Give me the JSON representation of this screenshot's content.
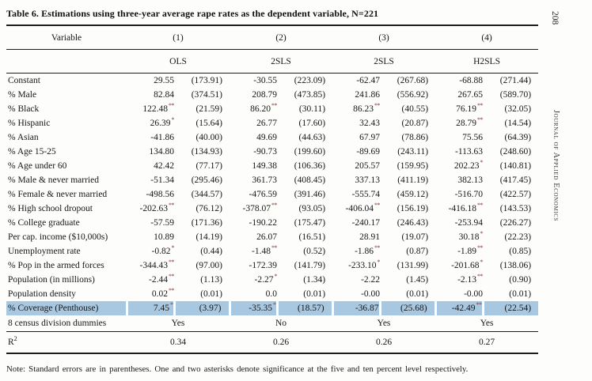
{
  "page": {
    "page_number": "208",
    "journal_title": "Journal of Applied Economics"
  },
  "table": {
    "title": "Table 6. Estimations using three-year average rape rates as the dependent variable, N=221",
    "headers": {
      "variable": "Variable",
      "models": [
        "(1)",
        "(2)",
        "(3)",
        "(4)"
      ],
      "methods": [
        "OLS",
        "2SLS",
        "2SLS",
        "H2SLS"
      ]
    },
    "rows": [
      {
        "label": "Constant",
        "cells": [
          {
            "t": "29.55"
          },
          {
            "t": "(173.91)"
          },
          {
            "t": "-30.55"
          },
          {
            "t": "(223.09)"
          },
          {
            "t": "-62.47"
          },
          {
            "t": "(267.68)"
          },
          {
            "t": "-68.88"
          },
          {
            "t": "(271.44)"
          }
        ]
      },
      {
        "label": "% Male",
        "cells": [
          {
            "t": "82.84"
          },
          {
            "t": "(374.51)"
          },
          {
            "t": "208.79"
          },
          {
            "t": "(473.85)"
          },
          {
            "t": "241.86"
          },
          {
            "t": "(556.92)"
          },
          {
            "t": "267.65"
          },
          {
            "t": "(589.70)"
          }
        ]
      },
      {
        "label": "% Black",
        "cells": [
          {
            "t": "122.48",
            "s": "**"
          },
          {
            "t": "(21.59)"
          },
          {
            "t": "86.20",
            "s": "**"
          },
          {
            "t": "(30.11)"
          },
          {
            "t": "86.23",
            "s": "**"
          },
          {
            "t": "(40.55)"
          },
          {
            "t": "76.19",
            "s": "**"
          },
          {
            "t": "(32.05)"
          }
        ]
      },
      {
        "label": "% Hispanic",
        "cells": [
          {
            "t": "26.39",
            "s": "*"
          },
          {
            "t": "(15.64)"
          },
          {
            "t": "26.77"
          },
          {
            "t": "(17.60)"
          },
          {
            "t": "32.43"
          },
          {
            "t": "(20.87)"
          },
          {
            "t": "28.79",
            "s": "**"
          },
          {
            "t": "(14.54)"
          }
        ]
      },
      {
        "label": "% Asian",
        "cells": [
          {
            "t": "-41.86"
          },
          {
            "t": "(40.00)"
          },
          {
            "t": "49.69"
          },
          {
            "t": "(44.63)"
          },
          {
            "t": "67.97"
          },
          {
            "t": "(78.86)"
          },
          {
            "t": "75.56"
          },
          {
            "t": "(64.39)"
          }
        ]
      },
      {
        "label": "% Age 15-25",
        "cells": [
          {
            "t": "134.80"
          },
          {
            "t": "(134.93)"
          },
          {
            "t": "-90.73"
          },
          {
            "t": "(199.60)"
          },
          {
            "t": "-89.69"
          },
          {
            "t": "(243.11)"
          },
          {
            "t": "-113.63"
          },
          {
            "t": "(248.60)"
          }
        ]
      },
      {
        "label": "% Age under 60",
        "cells": [
          {
            "t": "42.42"
          },
          {
            "t": "(77.17)"
          },
          {
            "t": "149.38"
          },
          {
            "t": "(106.36)"
          },
          {
            "t": "205.57"
          },
          {
            "t": "(159.95)"
          },
          {
            "t": "202.23",
            "s": "*"
          },
          {
            "t": "(140.81)"
          }
        ]
      },
      {
        "label": "% Male & never married",
        "cells": [
          {
            "t": "-51.34"
          },
          {
            "t": "(295.46)"
          },
          {
            "t": "361.73"
          },
          {
            "t": "(408.45)"
          },
          {
            "t": "337.13"
          },
          {
            "t": "(411.19)"
          },
          {
            "t": "382.13"
          },
          {
            "t": "(417.45)"
          }
        ]
      },
      {
        "label": "% Female & never married",
        "cells": [
          {
            "t": "-498.56"
          },
          {
            "t": "(344.57)"
          },
          {
            "t": "-476.59"
          },
          {
            "t": "(391.46)"
          },
          {
            "t": "-555.74"
          },
          {
            "t": "(459.12)"
          },
          {
            "t": "-516.70"
          },
          {
            "t": "(422.57)"
          }
        ]
      },
      {
        "label": "% High school dropout",
        "cells": [
          {
            "t": "-202.63",
            "s": "**"
          },
          {
            "t": "(76.12)"
          },
          {
            "t": "-378.07",
            "s": "**"
          },
          {
            "t": "(93.05)"
          },
          {
            "t": "-406.04",
            "s": "**"
          },
          {
            "t": "(156.19)"
          },
          {
            "t": "-416.18",
            "s": "**"
          },
          {
            "t": "(143.53)"
          }
        ]
      },
      {
        "label": "% College graduate",
        "cells": [
          {
            "t": "-57.59"
          },
          {
            "t": "(171.36)"
          },
          {
            "t": "-190.22"
          },
          {
            "t": "(175.47)"
          },
          {
            "t": "-240.17"
          },
          {
            "t": "(246.43)"
          },
          {
            "t": "-253.94"
          },
          {
            "t": "(226.27)"
          }
        ]
      },
      {
        "label": "Per cap. income ($10,000s)",
        "cells": [
          {
            "t": "10.89"
          },
          {
            "t": "(14.19)"
          },
          {
            "t": "26.07"
          },
          {
            "t": "(16.51)"
          },
          {
            "t": "28.91"
          },
          {
            "t": "(19.07)"
          },
          {
            "t": "30.18",
            "s": "*"
          },
          {
            "t": "(22.23)"
          }
        ]
      },
      {
        "label": "Unemployment rate",
        "cells": [
          {
            "t": "-0.82",
            "s": "*"
          },
          {
            "t": "(0.44)"
          },
          {
            "t": "-1.48",
            "s": "**"
          },
          {
            "t": "(0.52)"
          },
          {
            "t": "-1.86",
            "s": "**"
          },
          {
            "t": "(0.87)"
          },
          {
            "t": "-1.89",
            "s": "**"
          },
          {
            "t": "(0.85)"
          }
        ]
      },
      {
        "label": "% Pop in the armed forces",
        "cells": [
          {
            "t": "-344.43",
            "s": "**"
          },
          {
            "t": "(97.00)"
          },
          {
            "t": "-172.39"
          },
          {
            "t": "(141.79)"
          },
          {
            "t": "-233.10",
            "s": "*"
          },
          {
            "t": "(131.99)"
          },
          {
            "t": "-201.68",
            "s": "*"
          },
          {
            "t": "(138.06)"
          }
        ]
      },
      {
        "label": "Population (in millions)",
        "cells": [
          {
            "t": "-2.44",
            "s": "**"
          },
          {
            "t": "(1.13)"
          },
          {
            "t": "-2.27",
            "s": "*"
          },
          {
            "t": "(1.34)"
          },
          {
            "t": "-2.22"
          },
          {
            "t": "(1.45)"
          },
          {
            "t": "-2.13",
            "s": "**"
          },
          {
            "t": "(0.90)"
          }
        ]
      },
      {
        "label": "Population density",
        "cells": [
          {
            "t": "0.02",
            "s": "**"
          },
          {
            "t": "(0.01)"
          },
          {
            "t": "0.0"
          },
          {
            "t": "(0.01)"
          },
          {
            "t": "-0.00"
          },
          {
            "t": "(0.01)"
          },
          {
            "t": "-0.00"
          },
          {
            "t": "(0.01)"
          }
        ]
      },
      {
        "label": "% Coverage (Penthouse)",
        "highlight": true,
        "cells": [
          {
            "t": "7.45",
            "s": "*"
          },
          {
            "t": "(3.97)"
          },
          {
            "t": "-35.35",
            "s": "*"
          },
          {
            "t": "(18.57)"
          },
          {
            "t": "-36.87"
          },
          {
            "t": "(25.68)"
          },
          {
            "t": "-42.49",
            "s": "**"
          },
          {
            "t": "(22.54)"
          }
        ]
      }
    ],
    "dummies_row": {
      "label": "8 census division dummies",
      "values": [
        "Yes",
        "No",
        "Yes",
        "Yes"
      ]
    },
    "r2_row": {
      "label": "R",
      "sup": "2",
      "values": [
        "0.34",
        "0.26",
        "0.26",
        "0.27"
      ]
    },
    "note": "Note: Standard errors are in parentheses. One and two asterisks denote significance at the five and ten percent level respectively."
  },
  "colors": {
    "highlight": "#a8c7e0",
    "stars": "#8a3b3b"
  }
}
